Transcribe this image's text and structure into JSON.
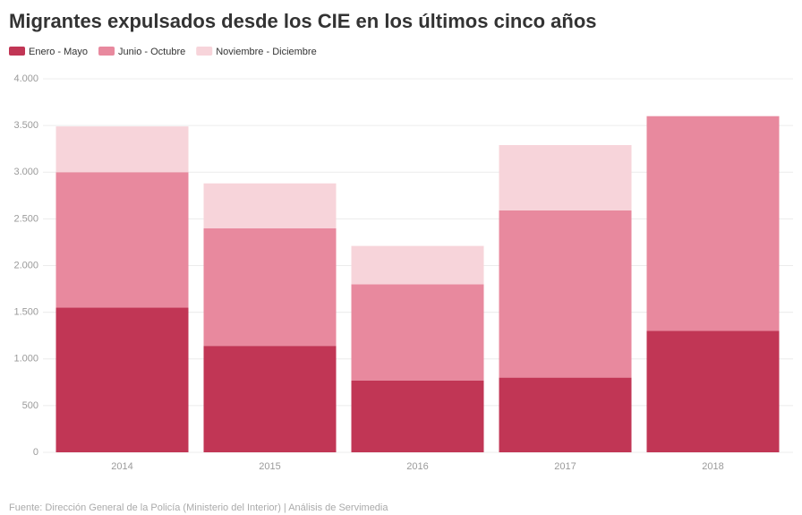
{
  "chart_data": {
    "type": "stacked_bar",
    "title": "Migrantes expulsados desde los CIE en los últimos cinco años",
    "source": "Fuente: Dirección General de la Policía (Ministerio del Interior) | Análisis de Servimedia",
    "categories": [
      "2014",
      "2015",
      "2016",
      "2017",
      "2018"
    ],
    "series": [
      {
        "name": "Enero - Mayo",
        "color": "#c13655",
        "values": [
          1550,
          1140,
          770,
          800,
          1300
        ]
      },
      {
        "name": "Junio - Octubre",
        "color": "#e8899e",
        "values": [
          1450,
          1260,
          1030,
          1790,
          2300
        ]
      },
      {
        "name": "Noviembre - Diciembre",
        "color": "#f7d4da",
        "values": [
          490,
          480,
          410,
          700,
          0
        ]
      }
    ],
    "ylim": [
      0,
      4000
    ],
    "yticks": [
      0,
      500,
      {
        "value": 1000,
        "label": "1.000"
      },
      {
        "value": 1500,
        "label": "1.500"
      },
      {
        "value": 2000,
        "label": "2.000"
      },
      {
        "value": 2500,
        "label": "2.500"
      },
      {
        "value": 3000,
        "label": "3.000"
      },
      {
        "value": 3500,
        "label": "3.500"
      },
      {
        "value": 4000,
        "label": "4.000"
      }
    ],
    "grid": true,
    "legend": "top-left"
  }
}
